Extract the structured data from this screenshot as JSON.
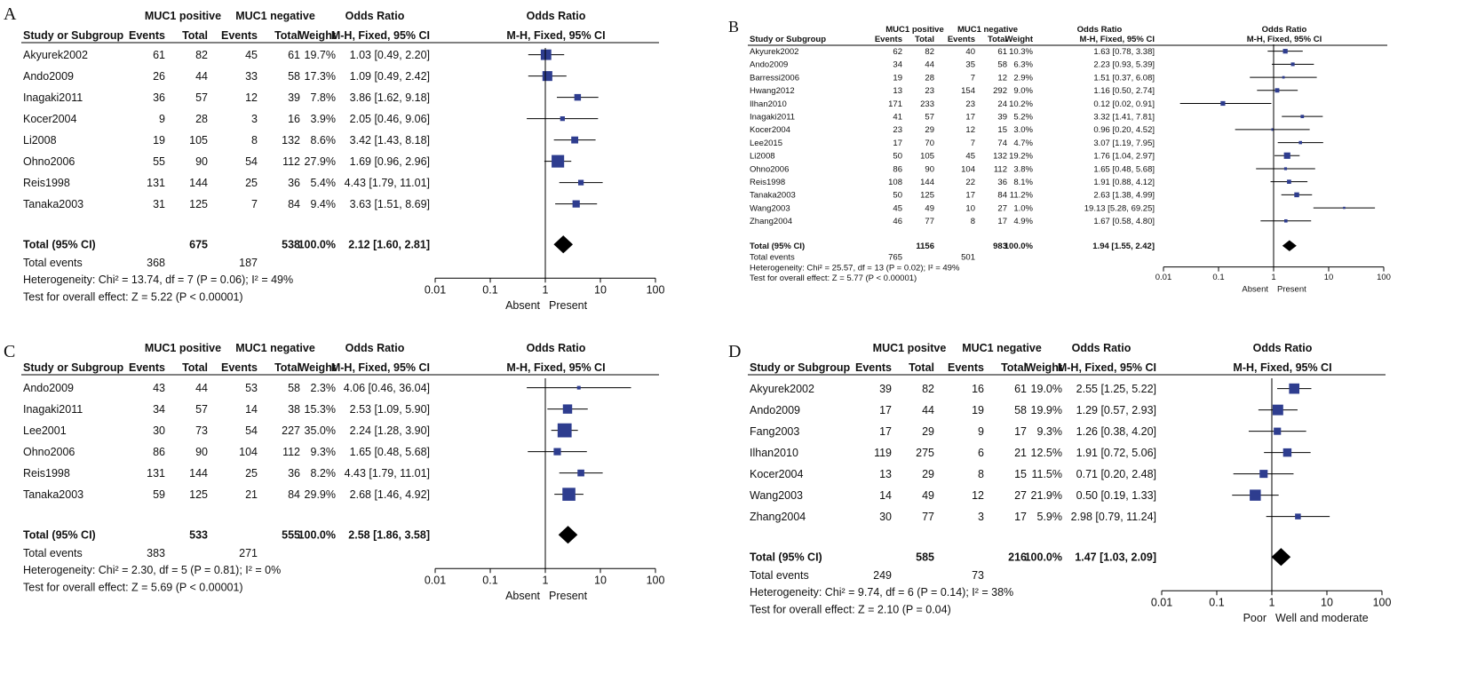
{
  "colors": {
    "marker": "#2e3d8f",
    "line": "#000000",
    "text": "#111111"
  },
  "labels": {
    "study": "Study or Subgroup",
    "events": "Events",
    "total": "Total",
    "weight": "Weight",
    "odds_ratio": "Odds Ratio",
    "method": "M-H, Fixed, 95% CI",
    "total_row": "Total (95% CI)",
    "total_events": "Total events"
  },
  "chart_data": [
    {
      "type": "forest",
      "panel": "A",
      "group1": "MUC1 positive",
      "group2": "MUC1 negative",
      "axis_ticks": [
        "0.01",
        "0.1",
        "1",
        "10",
        "100"
      ],
      "axis_values": [
        0.01,
        0.1,
        1,
        10,
        100
      ],
      "xlim": [
        0.01,
        100
      ],
      "favours_left": "Absent",
      "favours_right": "Present",
      "studies": [
        {
          "name": "Akyurek2002",
          "e1": "61",
          "t1": "82",
          "e2": "45",
          "t2": "61",
          "weight": "19.7%",
          "ci": "1.03 [0.49, 2.20]",
          "or": 1.03,
          "lo": 0.49,
          "hi": 2.2,
          "w": 19.7
        },
        {
          "name": "Ando2009",
          "e1": "26",
          "t1": "44",
          "e2": "33",
          "t2": "58",
          "weight": "17.3%",
          "ci": "1.09 [0.49, 2.42]",
          "or": 1.09,
          "lo": 0.49,
          "hi": 2.42,
          "w": 17.3
        },
        {
          "name": "Inagaki2011",
          "e1": "36",
          "t1": "57",
          "e2": "12",
          "t2": "39",
          "weight": "7.8%",
          "ci": "3.86 [1.62, 9.18]",
          "or": 3.86,
          "lo": 1.62,
          "hi": 9.18,
          "w": 7.8
        },
        {
          "name": "Kocer2004",
          "e1": "9",
          "t1": "28",
          "e2": "3",
          "t2": "16",
          "weight": "3.9%",
          "ci": "2.05 [0.46, 9.06]",
          "or": 2.05,
          "lo": 0.46,
          "hi": 9.06,
          "w": 3.9
        },
        {
          "name": "Li2008",
          "e1": "19",
          "t1": "105",
          "e2": "8",
          "t2": "132",
          "weight": "8.6%",
          "ci": "3.42 [1.43, 8.18]",
          "or": 3.42,
          "lo": 1.43,
          "hi": 8.18,
          "w": 8.6
        },
        {
          "name": "Ohno2006",
          "e1": "55",
          "t1": "90",
          "e2": "54",
          "t2": "112",
          "weight": "27.9%",
          "ci": "1.69 [0.96, 2.96]",
          "or": 1.69,
          "lo": 0.96,
          "hi": 2.96,
          "w": 27.9
        },
        {
          "name": "Reis1998",
          "e1": "131",
          "t1": "144",
          "e2": "25",
          "t2": "36",
          "weight": "5.4%",
          "ci": "4.43 [1.79, 11.01]",
          "or": 4.43,
          "lo": 1.79,
          "hi": 11.01,
          "w": 5.4
        },
        {
          "name": "Tanaka2003",
          "e1": "31",
          "t1": "125",
          "e2": "7",
          "t2": "84",
          "weight": "9.4%",
          "ci": "3.63 [1.51, 8.69]",
          "or": 3.63,
          "lo": 1.51,
          "hi": 8.69,
          "w": 9.4
        }
      ],
      "total": {
        "t1": "675",
        "t2": "538",
        "weight": "100.0%",
        "ci": "2.12 [1.60, 2.81]",
        "or": 2.12,
        "lo": 1.6,
        "hi": 2.81
      },
      "total_events": {
        "e1": "368",
        "e2": "187"
      },
      "heterogeneity": "Heterogeneity: Chi² = 13.74, df = 7 (P = 0.06); I² = 49%",
      "overall_effect": "Test for overall effect: Z = 5.22 (P < 0.00001)"
    },
    {
      "type": "forest",
      "panel": "B",
      "group1": "MUC1 positive",
      "group2": "MUC1 negative",
      "axis_ticks": [
        "0.01",
        "0.1",
        "1",
        "10",
        "100"
      ],
      "axis_values": [
        0.01,
        0.1,
        1,
        10,
        100
      ],
      "xlim": [
        0.01,
        100
      ],
      "favours_left": "Absent",
      "favours_right": "Present",
      "studies": [
        {
          "name": "Akyurek2002",
          "e1": "62",
          "t1": "82",
          "e2": "40",
          "t2": "61",
          "weight": "10.3%",
          "ci": "1.63 [0.78, 3.38]",
          "or": 1.63,
          "lo": 0.78,
          "hi": 3.38,
          "w": 10.3
        },
        {
          "name": "Ando2009",
          "e1": "34",
          "t1": "44",
          "e2": "35",
          "t2": "58",
          "weight": "6.3%",
          "ci": "2.23 [0.93, 5.39]",
          "or": 2.23,
          "lo": 0.93,
          "hi": 5.39,
          "w": 6.3
        },
        {
          "name": "Barressi2006",
          "e1": "19",
          "t1": "28",
          "e2": "7",
          "t2": "12",
          "weight": "2.9%",
          "ci": "1.51 [0.37, 6.08]",
          "or": 1.51,
          "lo": 0.37,
          "hi": 6.08,
          "w": 2.9
        },
        {
          "name": "Hwang2012",
          "e1": "13",
          "t1": "23",
          "e2": "154",
          "t2": "292",
          "weight": "9.0%",
          "ci": "1.16 [0.50, 2.74]",
          "or": 1.16,
          "lo": 0.5,
          "hi": 2.74,
          "w": 9.0
        },
        {
          "name": "Ilhan2010",
          "e1": "171",
          "t1": "233",
          "e2": "23",
          "t2": "24",
          "weight": "10.2%",
          "ci": "0.12 [0.02, 0.91]",
          "or": 0.12,
          "lo": 0.02,
          "hi": 0.91,
          "w": 10.2
        },
        {
          "name": "Inagaki2011",
          "e1": "41",
          "t1": "57",
          "e2": "17",
          "t2": "39",
          "weight": "5.2%",
          "ci": "3.32 [1.41, 7.81]",
          "or": 3.32,
          "lo": 1.41,
          "hi": 7.81,
          "w": 5.2
        },
        {
          "name": "Kocer2004",
          "e1": "23",
          "t1": "29",
          "e2": "12",
          "t2": "15",
          "weight": "3.0%",
          "ci": "0.96 [0.20, 4.52]",
          "or": 0.96,
          "lo": 0.2,
          "hi": 4.52,
          "w": 3.0
        },
        {
          "name": "Lee2015",
          "e1": "17",
          "t1": "70",
          "e2": "7",
          "t2": "74",
          "weight": "4.7%",
          "ci": "3.07 [1.19, 7.95]",
          "or": 3.07,
          "lo": 1.19,
          "hi": 7.95,
          "w": 4.7
        },
        {
          "name": "Li2008",
          "e1": "50",
          "t1": "105",
          "e2": "45",
          "t2": "132",
          "weight": "19.2%",
          "ci": "1.76 [1.04, 2.97]",
          "or": 1.76,
          "lo": 1.04,
          "hi": 2.97,
          "w": 19.2
        },
        {
          "name": "Ohno2006",
          "e1": "86",
          "t1": "90",
          "e2": "104",
          "t2": "112",
          "weight": "3.8%",
          "ci": "1.65 [0.48, 5.68]",
          "or": 1.65,
          "lo": 0.48,
          "hi": 5.68,
          "w": 3.8
        },
        {
          "name": "Reis1998",
          "e1": "108",
          "t1": "144",
          "e2": "22",
          "t2": "36",
          "weight": "8.1%",
          "ci": "1.91 [0.88, 4.12]",
          "or": 1.91,
          "lo": 0.88,
          "hi": 4.12,
          "w": 8.1
        },
        {
          "name": "Tanaka2003",
          "e1": "50",
          "t1": "125",
          "e2": "17",
          "t2": "84",
          "weight": "11.2%",
          "ci": "2.63 [1.38, 4.99]",
          "or": 2.63,
          "lo": 1.38,
          "hi": 4.99,
          "w": 11.2
        },
        {
          "name": "Wang2003",
          "e1": "45",
          "t1": "49",
          "e2": "10",
          "t2": "27",
          "weight": "1.0%",
          "ci": "19.13 [5.28, 69.25]",
          "or": 19.13,
          "lo": 5.28,
          "hi": 69.25,
          "w": 1.0
        },
        {
          "name": "Zhang2004",
          "e1": "46",
          "t1": "77",
          "e2": "8",
          "t2": "17",
          "weight": "4.9%",
          "ci": "1.67 [0.58, 4.80]",
          "or": 1.67,
          "lo": 0.58,
          "hi": 4.8,
          "w": 4.9
        }
      ],
      "total": {
        "t1": "1156",
        "t2": "983",
        "weight": "100.0%",
        "ci": "1.94 [1.55, 2.42]",
        "or": 1.94,
        "lo": 1.55,
        "hi": 2.42
      },
      "total_events": {
        "e1": "765",
        "e2": "501"
      },
      "heterogeneity": "Heterogeneity: Chi² = 25.57, df = 13 (P = 0.02); I² = 49%",
      "overall_effect": "Test for overall effect: Z = 5.77 (P < 0.00001)"
    },
    {
      "type": "forest",
      "panel": "C",
      "group1": "MUC1 positive",
      "group2": "MUC1 negative",
      "axis_ticks": [
        "0.01",
        "0.1",
        "1",
        "10",
        "100"
      ],
      "axis_values": [
        0.01,
        0.1,
        1,
        10,
        100
      ],
      "xlim": [
        0.01,
        100
      ],
      "favours_left": "Absent",
      "favours_right": "Present",
      "studies": [
        {
          "name": "Ando2009",
          "e1": "43",
          "t1": "44",
          "e2": "53",
          "t2": "58",
          "weight": "2.3%",
          "ci": "4.06 [0.46, 36.04]",
          "or": 4.06,
          "lo": 0.46,
          "hi": 36.04,
          "w": 2.3
        },
        {
          "name": "Inagaki2011",
          "e1": "34",
          "t1": "57",
          "e2": "14",
          "t2": "38",
          "weight": "15.3%",
          "ci": "2.53 [1.09, 5.90]",
          "or": 2.53,
          "lo": 1.09,
          "hi": 5.9,
          "w": 15.3
        },
        {
          "name": "Lee2001",
          "e1": "30",
          "t1": "73",
          "e2": "54",
          "t2": "227",
          "weight": "35.0%",
          "ci": "2.24 [1.28, 3.90]",
          "or": 2.24,
          "lo": 1.28,
          "hi": 3.9,
          "w": 35.0
        },
        {
          "name": "Ohno2006",
          "e1": "86",
          "t1": "90",
          "e2": "104",
          "t2": "112",
          "weight": "9.3%",
          "ci": "1.65 [0.48, 5.68]",
          "or": 1.65,
          "lo": 0.48,
          "hi": 5.68,
          "w": 9.3
        },
        {
          "name": "Reis1998",
          "e1": "131",
          "t1": "144",
          "e2": "25",
          "t2": "36",
          "weight": "8.2%",
          "ci": "4.43 [1.79, 11.01]",
          "or": 4.43,
          "lo": 1.79,
          "hi": 11.01,
          "w": 8.2
        },
        {
          "name": "Tanaka2003",
          "e1": "59",
          "t1": "125",
          "e2": "21",
          "t2": "84",
          "weight": "29.9%",
          "ci": "2.68 [1.46, 4.92]",
          "or": 2.68,
          "lo": 1.46,
          "hi": 4.92,
          "w": 29.9
        }
      ],
      "total": {
        "t1": "533",
        "t2": "555",
        "weight": "100.0%",
        "ci": "2.58 [1.86, 3.58]",
        "or": 2.58,
        "lo": 1.86,
        "hi": 3.58
      },
      "total_events": {
        "e1": "383",
        "e2": "271"
      },
      "heterogeneity": "Heterogeneity: Chi² = 2.30, df = 5 (P = 0.81); I² = 0%",
      "overall_effect": "Test for overall effect: Z = 5.69 (P < 0.00001)"
    },
    {
      "type": "forest",
      "panel": "D",
      "group1": "MUC1 positve",
      "group2": "MUC1 negative",
      "axis_ticks": [
        "0.01",
        "0.1",
        "1",
        "10",
        "100"
      ],
      "axis_values": [
        0.01,
        0.1,
        1,
        10,
        100
      ],
      "xlim": [
        0.01,
        100
      ],
      "favours_left": "Poor",
      "favours_right": "Well and moderate",
      "studies": [
        {
          "name": "Akyurek2002",
          "e1": "39",
          "t1": "82",
          "e2": "16",
          "t2": "61",
          "weight": "19.0%",
          "ci": "2.55 [1.25, 5.22]",
          "or": 2.55,
          "lo": 1.25,
          "hi": 5.22,
          "w": 19.0
        },
        {
          "name": "Ando2009",
          "e1": "17",
          "t1": "44",
          "e2": "19",
          "t2": "58",
          "weight": "19.9%",
          "ci": "1.29 [0.57, 2.93]",
          "or": 1.29,
          "lo": 0.57,
          "hi": 2.93,
          "w": 19.9
        },
        {
          "name": "Fang2003",
          "e1": "17",
          "t1": "29",
          "e2": "9",
          "t2": "17",
          "weight": "9.3%",
          "ci": "1.26 [0.38, 4.20]",
          "or": 1.26,
          "lo": 0.38,
          "hi": 4.2,
          "w": 9.3
        },
        {
          "name": "Ilhan2010",
          "e1": "119",
          "t1": "275",
          "e2": "6",
          "t2": "21",
          "weight": "12.5%",
          "ci": "1.91 [0.72, 5.06]",
          "or": 1.91,
          "lo": 0.72,
          "hi": 5.06,
          "w": 12.5
        },
        {
          "name": "Kocer2004",
          "e1": "13",
          "t1": "29",
          "e2": "8",
          "t2": "15",
          "weight": "11.5%",
          "ci": "0.71 [0.20, 2.48]",
          "or": 0.71,
          "lo": 0.2,
          "hi": 2.48,
          "w": 11.5
        },
        {
          "name": "Wang2003",
          "e1": "14",
          "t1": "49",
          "e2": "12",
          "t2": "27",
          "weight": "21.9%",
          "ci": "0.50 [0.19, 1.33]",
          "or": 0.5,
          "lo": 0.19,
          "hi": 1.33,
          "w": 21.9
        },
        {
          "name": "Zhang2004",
          "e1": "30",
          "t1": "77",
          "e2": "3",
          "t2": "17",
          "weight": "5.9%",
          "ci": "2.98 [0.79, 11.24]",
          "or": 2.98,
          "lo": 0.79,
          "hi": 11.24,
          "w": 5.9
        }
      ],
      "total": {
        "t1": "585",
        "t2": "216",
        "weight": "100.0%",
        "ci": "1.47 [1.03, 2.09]",
        "or": 1.47,
        "lo": 1.03,
        "hi": 2.09
      },
      "total_events": {
        "e1": "249",
        "e2": "73"
      },
      "heterogeneity": "Heterogeneity: Chi² = 9.74, df = 6 (P = 0.14); I² = 38%",
      "overall_effect": "Test for overall effect: Z = 2.10 (P = 0.04)"
    }
  ]
}
